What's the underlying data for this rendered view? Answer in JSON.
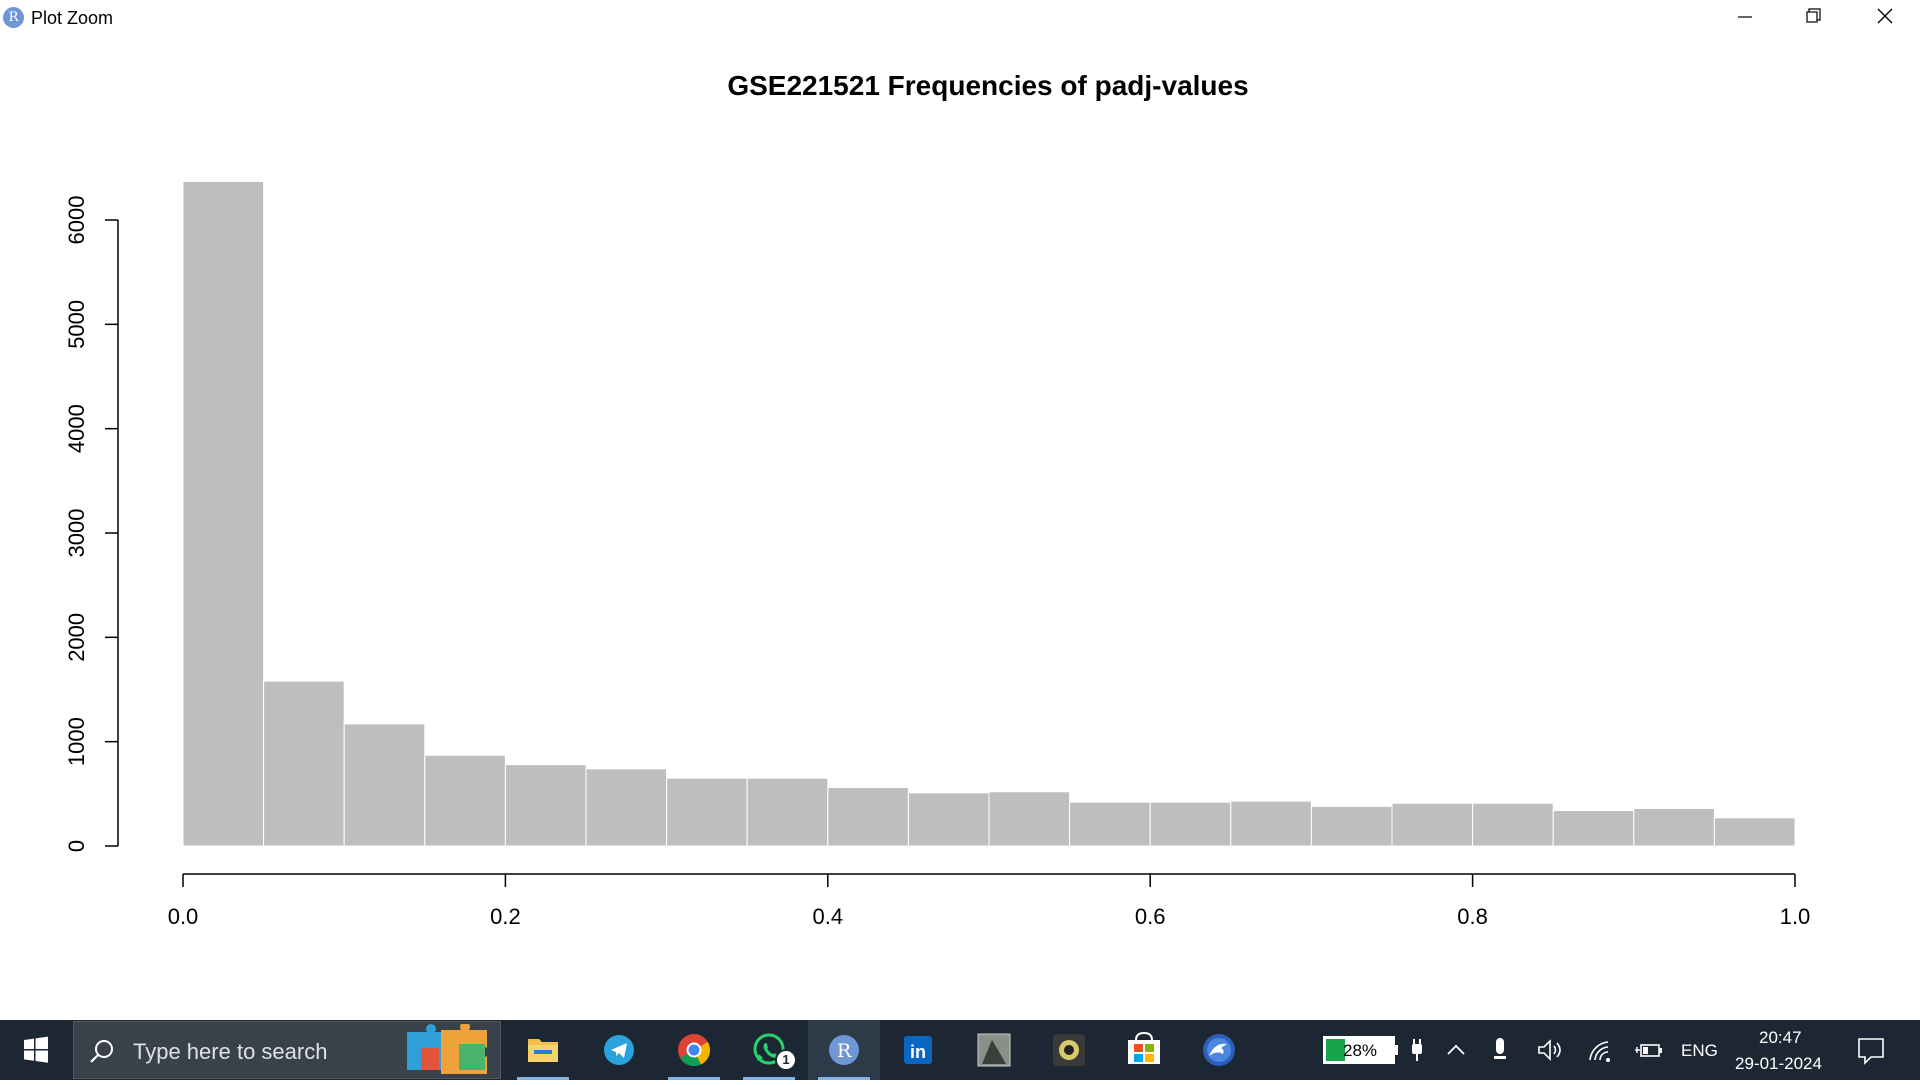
{
  "window": {
    "title": "Plot Zoom",
    "app_icon_letter": "R"
  },
  "chart_data": {
    "type": "bar",
    "title": "GSE221521 Frequencies of padj-values",
    "xlabel": "",
    "ylabel": "",
    "bin_edges": [
      0.0,
      0.05,
      0.1,
      0.15,
      0.2,
      0.25,
      0.3,
      0.35,
      0.4,
      0.45,
      0.5,
      0.55,
      0.6,
      0.65,
      0.7,
      0.75,
      0.8,
      0.85,
      0.9,
      0.95,
      1.0
    ],
    "values": [
      6370,
      1580,
      1170,
      870,
      780,
      740,
      650,
      650,
      560,
      510,
      520,
      420,
      420,
      430,
      380,
      410,
      410,
      340,
      360,
      270
    ],
    "xlim": [
      0,
      1
    ],
    "ylim": [
      0,
      6000
    ],
    "x_ticks": [
      "0.0",
      "0.2",
      "0.4",
      "0.6",
      "0.8",
      "1.0"
    ],
    "x_tick_values": [
      0,
      0.2,
      0.4,
      0.6,
      0.8,
      1.0
    ],
    "y_ticks": [
      "0",
      "1000",
      "2000",
      "3000",
      "4000",
      "5000",
      "6000"
    ],
    "y_tick_values": [
      0,
      1000,
      2000,
      3000,
      4000,
      5000,
      6000
    ],
    "bar_color": "#bebebe",
    "grid": false
  },
  "taskbar": {
    "search_placeholder": "Type here to search",
    "whatsapp_badge": "1",
    "apps": [
      "file-explorer-icon",
      "telegram-icon",
      "chrome-icon",
      "whatsapp-icon",
      "r-gui-icon",
      "linkedin-icon",
      "photo-app-icon",
      "camera-app-icon",
      "microsoft-store-icon",
      "media-app-icon"
    ],
    "battery": "28%",
    "language": "ENG",
    "time": "20:47",
    "date": "29-01-2024"
  },
  "colors": {
    "taskbar_bg": "#1d2733",
    "bar_fill": "#bebebe",
    "battery_fill": "#16a34a"
  }
}
